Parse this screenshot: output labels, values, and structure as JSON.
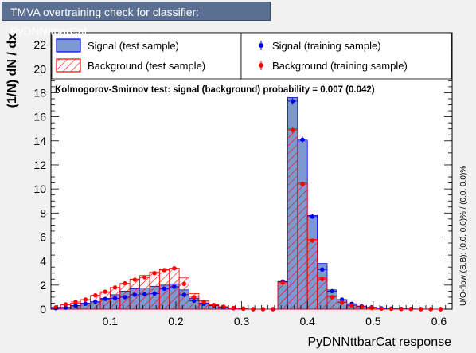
{
  "title": "TMVA overtraining check for classifier: PyDNNttbarCat",
  "colors": {
    "signal_fill": "#7d99d1",
    "signal_edge": "#0000ee",
    "background_hatch": "#ff0000",
    "signal_train_marker": "#0000ee",
    "background_train_marker": "#ff0000",
    "frame_bg": "#ffffff",
    "page_bg": "#f1f1f1",
    "title_bg": "#5b6f92"
  },
  "legend": {
    "signal_test": "Signal (test sample)",
    "background_test": "Background (test sample)",
    "signal_train": "Signal (training sample)",
    "background_train": "Background (training sample)"
  },
  "ks_text": "Kolmogorov-Smirnov test: signal (background) probability = 0.007 (0.042)",
  "overflow_text": "U/O-flow (S,B): (0.0, 0.0)% / (0.0, 0.0)%",
  "chart_data": {
    "type": "bar",
    "title": "TMVA overtraining check for classifier: PyDNNttbarCat",
    "xlabel": "PyDNNttbarCat response",
    "ylabel": "(1/N) dN / dx",
    "xlim": [
      0.01,
      0.62
    ],
    "ylim": [
      0,
      23
    ],
    "xticks": [
      "0.1",
      "0.2",
      "0.3",
      "0.4",
      "0.5",
      "0.6"
    ],
    "yticks": [
      "0",
      "2",
      "4",
      "6",
      "8",
      "10",
      "12",
      "14",
      "16",
      "18",
      "20",
      "22"
    ],
    "bin_edges": [
      0.01,
      0.025,
      0.04,
      0.055,
      0.07,
      0.085,
      0.1,
      0.115,
      0.13,
      0.145,
      0.16,
      0.175,
      0.19,
      0.205,
      0.22,
      0.235,
      0.25,
      0.265,
      0.28,
      0.295,
      0.31,
      0.325,
      0.34,
      0.355,
      0.37,
      0.385,
      0.4,
      0.415,
      0.43,
      0.445,
      0.46,
      0.475,
      0.49,
      0.505,
      0.52,
      0.535,
      0.55,
      0.565,
      0.58,
      0.595,
      0.61
    ],
    "series": [
      {
        "name": "Signal (test sample)",
        "style": "filled-histogram",
        "values": [
          0.1,
          0.15,
          0.3,
          0.5,
          0.6,
          0.9,
          1.2,
          1.5,
          1.7,
          1.75,
          1.9,
          2.0,
          2.1,
          1.6,
          0.9,
          0.5,
          0.3,
          0.15,
          0.1,
          0.05,
          0.0,
          0.0,
          0.0,
          2.3,
          17.6,
          14.0,
          7.8,
          3.8,
          1.6,
          0.8,
          0.4,
          0.25,
          0.15,
          0.1,
          0.05,
          0.03,
          0.02,
          0.01,
          0.0,
          0.0
        ]
      },
      {
        "name": "Background (test sample)",
        "style": "hatched-histogram",
        "values": [
          0.15,
          0.35,
          0.5,
          0.8,
          1.1,
          1.4,
          1.8,
          2.1,
          2.5,
          2.8,
          3.1,
          3.3,
          3.4,
          2.6,
          1.3,
          0.7,
          0.4,
          0.2,
          0.1,
          0.05,
          0.0,
          0.0,
          0.0,
          2.1,
          15.0,
          10.5,
          5.8,
          2.6,
          1.1,
          0.6,
          0.3,
          0.2,
          0.1,
          0.05,
          0.03,
          0.02,
          0.01,
          0.0,
          0.0,
          0.0
        ]
      },
      {
        "name": "Signal (training sample)",
        "style": "markers",
        "values": [
          0.08,
          0.12,
          0.28,
          0.45,
          0.62,
          0.85,
          0.9,
          1.0,
          1.2,
          1.25,
          1.3,
          1.7,
          1.85,
          1.2,
          0.7,
          0.45,
          0.3,
          0.15,
          0.08,
          0.04,
          0.0,
          0.0,
          0.0,
          2.3,
          17.3,
          14.1,
          7.7,
          3.3,
          1.5,
          0.8,
          0.45,
          0.25,
          0.15,
          0.08,
          0.05,
          0.03,
          0.02,
          0.01,
          0.0,
          0.0
        ]
      },
      {
        "name": "Background (training sample)",
        "style": "markers",
        "values": [
          0.15,
          0.4,
          0.6,
          0.8,
          1.15,
          1.45,
          1.8,
          2.15,
          2.45,
          2.65,
          3.0,
          3.25,
          3.4,
          2.1,
          1.0,
          0.6,
          0.35,
          0.2,
          0.1,
          0.05,
          0.0,
          0.0,
          0.0,
          2.2,
          14.9,
          10.4,
          5.7,
          2.5,
          1.0,
          0.55,
          0.3,
          0.2,
          0.1,
          0.05,
          0.03,
          0.02,
          0.01,
          0.0,
          0.0,
          0.0
        ]
      }
    ]
  }
}
